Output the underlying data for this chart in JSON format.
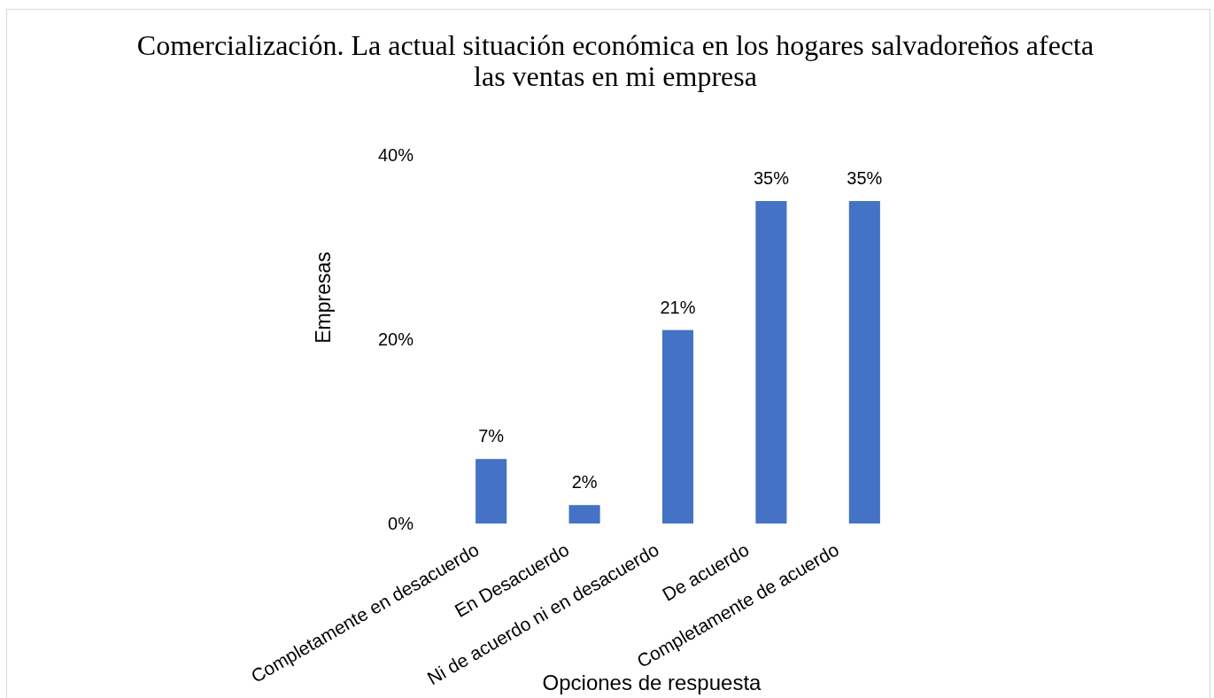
{
  "chart_data": {
    "type": "bar",
    "title": "Comercialización. La actual situación económica en los hogares salvadoreños afecta\nlas ventas en mi empresa",
    "xlabel": "Opciones de respuesta",
    "ylabel": "Empresas",
    "categories": [
      "Completamente en desacuerdo",
      "En Desacuerdo",
      "Ni de acuerdo ni en desacuerdo",
      "De acuerdo",
      "Completamente de acuerdo"
    ],
    "values": [
      7,
      2,
      21,
      35,
      35
    ],
    "color": "#4472c4",
    "value_labels": [
      "7%",
      "2%",
      "21%",
      "35%",
      "35%"
    ],
    "ylim": [
      0,
      40
    ],
    "yticks": [
      {
        "value": 0,
        "label": "0%"
      },
      {
        "value": 20,
        "label": "20%"
      },
      {
        "value": 40,
        "label": "40%"
      }
    ]
  }
}
